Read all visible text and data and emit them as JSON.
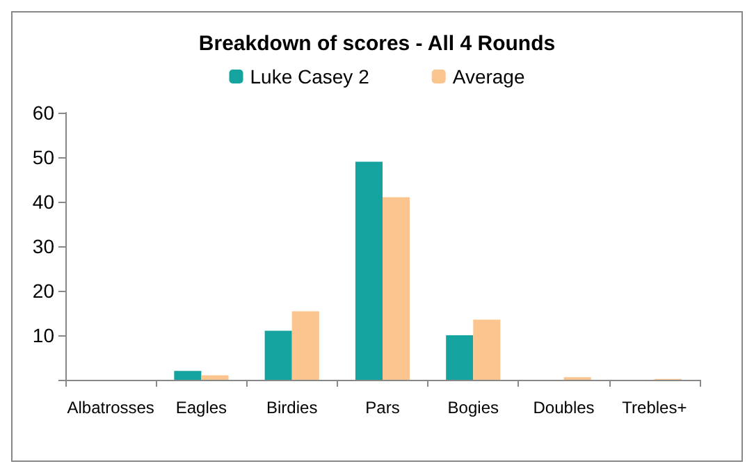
{
  "chart_data": {
    "type": "bar",
    "title": "Breakdown of scores - All 4 Rounds",
    "categories": [
      "Albatrosses",
      "Eagles",
      "Birdies",
      "Pars",
      "Bogies",
      "Doubles",
      "Trebles+"
    ],
    "series": [
      {
        "name": "Luke Casey 2",
        "color": "#14a39f",
        "values": [
          0,
          2,
          11,
          49,
          10,
          0,
          0
        ]
      },
      {
        "name": "Average",
        "color": "#fbc590",
        "values": [
          0,
          1,
          15.4,
          41,
          13.5,
          0.6,
          0.2
        ]
      }
    ],
    "ylim": [
      0,
      60
    ],
    "yticks": [
      {
        "value": 0,
        "label": null
      },
      10,
      20,
      30,
      40,
      50,
      60
    ],
    "grid": false,
    "legend": "top"
  }
}
